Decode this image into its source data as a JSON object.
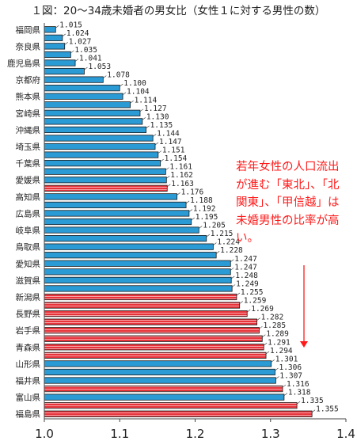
{
  "title": "１図：20～34歳未婚者の男女比（女性１に対する男性の数）",
  "annotation": "若年女性の人口流出が進む「東北」、「北関東」、「甲信越」は未婚男性の比率が高い。",
  "colors": {
    "blue": "#2b9bd6",
    "red": "#e8333b",
    "text": "#222222",
    "annotation": "#ff1a1a",
    "axis": "#444444"
  },
  "chart_data": {
    "type": "bar",
    "orientation": "horizontal",
    "title": "１図：20～34歳未婚者の男女比（女性１に対する男性の数）",
    "xlim": [
      1.0,
      1.4
    ],
    "xticks": [
      "1.0",
      "1.1",
      "1.2",
      "1.3",
      "1.4"
    ],
    "legend": "none",
    "grid": false,
    "value_labels_shown": true,
    "bars": [
      {
        "category": "福岡県",
        "value": 1.015,
        "label": "1.015",
        "group": "blue",
        "showCategory": true
      },
      {
        "category": "",
        "value": 1.024,
        "label": "1.024",
        "group": "blue",
        "showCategory": false
      },
      {
        "category": "奈良県",
        "value": 1.027,
        "label": "1.027",
        "group": "blue",
        "showCategory": true
      },
      {
        "category": "",
        "value": 1.035,
        "label": "1.035",
        "group": "blue",
        "showCategory": false
      },
      {
        "category": "鹿児島県",
        "value": 1.041,
        "label": "1.041",
        "group": "blue",
        "showCategory": true
      },
      {
        "category": "",
        "value": 1.053,
        "label": "1.053",
        "group": "blue",
        "showCategory": false
      },
      {
        "category": "京都府",
        "value": 1.078,
        "label": "1.078",
        "group": "blue",
        "showCategory": true
      },
      {
        "category": "",
        "value": 1.1,
        "label": "1.100",
        "group": "blue",
        "showCategory": false
      },
      {
        "category": "熊本県",
        "value": 1.104,
        "label": "1.104",
        "group": "blue",
        "showCategory": true
      },
      {
        "category": "",
        "value": 1.114,
        "label": "1.114",
        "group": "blue",
        "showCategory": false
      },
      {
        "category": "宮崎県",
        "value": 1.127,
        "label": "1.127",
        "group": "blue",
        "showCategory": true
      },
      {
        "category": "",
        "value": 1.13,
        "label": "1.130",
        "group": "blue",
        "showCategory": false
      },
      {
        "category": "沖縄県",
        "value": 1.135,
        "label": "1.135",
        "group": "blue",
        "showCategory": true
      },
      {
        "category": "",
        "value": 1.144,
        "label": "1.144",
        "group": "blue",
        "showCategory": false
      },
      {
        "category": "埼玉県",
        "value": 1.147,
        "label": "1.147",
        "group": "blue",
        "showCategory": true
      },
      {
        "category": "",
        "value": 1.151,
        "label": "1.151",
        "group": "blue",
        "showCategory": false
      },
      {
        "category": "千葉県",
        "value": 1.154,
        "label": "1.154",
        "group": "blue",
        "showCategory": true
      },
      {
        "category": "",
        "value": 1.161,
        "label": "1.161",
        "group": "blue",
        "showCategory": false
      },
      {
        "category": "愛媛県",
        "value": 1.162,
        "label": "1.162",
        "group": "blue",
        "showCategory": true
      },
      {
        "category": "",
        "value": 1.163,
        "label": "1.163",
        "group": "red",
        "showCategory": false
      },
      {
        "category": "高知県",
        "value": 1.176,
        "label": "1.176",
        "group": "blue",
        "showCategory": true
      },
      {
        "category": "",
        "value": 1.188,
        "label": "1.188",
        "group": "blue",
        "showCategory": false
      },
      {
        "category": "広島県",
        "value": 1.192,
        "label": "1.192",
        "group": "blue",
        "showCategory": true
      },
      {
        "category": "",
        "value": 1.195,
        "label": "1.195",
        "group": "blue",
        "showCategory": false
      },
      {
        "category": "岐阜県",
        "value": 1.205,
        "label": "1.205",
        "group": "blue",
        "showCategory": true
      },
      {
        "category": "",
        "value": 1.215,
        "label": "1.215",
        "group": "blue",
        "showCategory": false
      },
      {
        "category": "鳥取県",
        "value": 1.224,
        "label": "1.224",
        "group": "blue",
        "showCategory": true
      },
      {
        "category": "",
        "value": 1.228,
        "label": "1.228",
        "group": "blue",
        "showCategory": false
      },
      {
        "category": "愛知県",
        "value": 1.247,
        "label": "1.247",
        "group": "blue",
        "showCategory": true
      },
      {
        "category": "",
        "value": 1.247,
        "label": "1.247",
        "group": "blue",
        "showCategory": false
      },
      {
        "category": "滋賀県",
        "value": 1.248,
        "label": "1.248",
        "group": "blue",
        "showCategory": true
      },
      {
        "category": "",
        "value": 1.249,
        "label": "1.249",
        "group": "blue",
        "showCategory": false
      },
      {
        "category": "新潟県",
        "value": 1.255,
        "label": "1.255",
        "group": "red",
        "showCategory": true
      },
      {
        "category": "",
        "value": 1.259,
        "label": "1.259",
        "group": "red",
        "showCategory": false
      },
      {
        "category": "長野県",
        "value": 1.269,
        "label": "1.269",
        "group": "red",
        "showCategory": true
      },
      {
        "category": "",
        "value": 1.282,
        "label": "1.282",
        "group": "red",
        "showCategory": false
      },
      {
        "category": "岩手県",
        "value": 1.285,
        "label": "1.285",
        "group": "red",
        "showCategory": true
      },
      {
        "category": "",
        "value": 1.289,
        "label": "1.289",
        "group": "red",
        "showCategory": false
      },
      {
        "category": "青森県",
        "value": 1.291,
        "label": "1.291",
        "group": "red",
        "showCategory": true
      },
      {
        "category": "",
        "value": 1.294,
        "label": "1.294",
        "group": "red",
        "showCategory": false
      },
      {
        "category": "山形県",
        "value": 1.301,
        "label": "1.301",
        "group": "blue",
        "showCategory": true
      },
      {
        "category": "",
        "value": 1.306,
        "label": "1.306",
        "group": "blue",
        "showCategory": false
      },
      {
        "category": "福井県",
        "value": 1.307,
        "label": "1.307",
        "group": "blue",
        "showCategory": true
      },
      {
        "category": "",
        "value": 1.316,
        "label": "1.316",
        "group": "red",
        "showCategory": false
      },
      {
        "category": "富山県",
        "value": 1.318,
        "label": "1.318",
        "group": "blue",
        "showCategory": true
      },
      {
        "category": "",
        "value": 1.335,
        "label": "1.335",
        "group": "red",
        "showCategory": false
      },
      {
        "category": "福島県",
        "value": 1.355,
        "label": "1.355",
        "group": "red",
        "showCategory": true
      }
    ]
  }
}
